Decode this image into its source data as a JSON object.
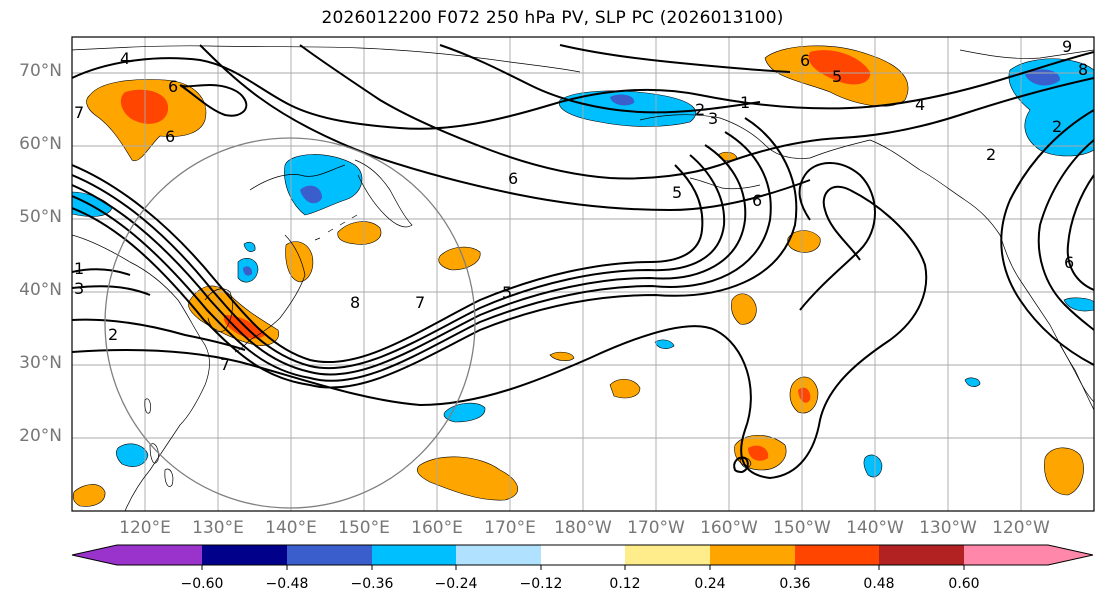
{
  "title": "2026012200 F072 250 hPa PV, SLP PC (2026013100)",
  "map": {
    "lat_labels": [
      "70°N",
      "60°N",
      "50°N",
      "40°N",
      "30°N",
      "20°N"
    ],
    "lon_labels": [
      "120°E",
      "130°E",
      "140°E",
      "150°E",
      "160°E",
      "170°E",
      "180°W",
      "170°W",
      "160°W",
      "150°W",
      "140°W",
      "130°W",
      "120°W"
    ],
    "contour_labels": [
      "4",
      "6",
      "7",
      "6",
      "1",
      "3",
      "2",
      "7",
      "8",
      "7",
      "5",
      "6",
      "5",
      "6",
      "1",
      "2",
      "3",
      "6",
      "5",
      "4",
      "9",
      "8",
      "2",
      "6",
      "2"
    ]
  },
  "colorbar": {
    "tick_labels": [
      "−0.60",
      "−0.48",
      "−0.36",
      "−0.24",
      "−0.12",
      "0.12",
      "0.24",
      "0.36",
      "0.48",
      "0.60"
    ],
    "colors": {
      "under": "#9933cc",
      "neg_060": "#00008b",
      "neg_048": "#3a5fcd",
      "neg_036": "#00bfff",
      "neg_024": "#b0e2ff",
      "neutral": "#ffffff",
      "pos_012": "#ffec8b",
      "pos_024": "#ffa500",
      "pos_036": "#ff4500",
      "pos_048": "#b22222",
      "over": "#ff88aa"
    }
  }
}
